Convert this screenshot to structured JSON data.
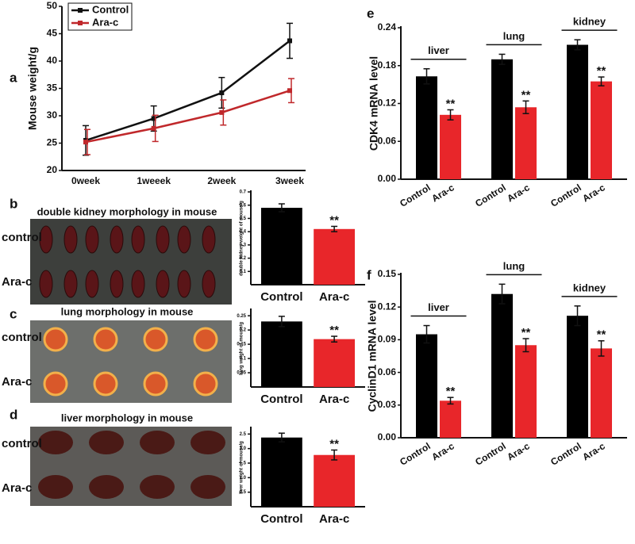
{
  "chart_data": [
    {
      "type": "line",
      "panel": "a",
      "ylabel": "Mouse weight/g",
      "categories": [
        "0week",
        "1weeek",
        "2week",
        "3week"
      ],
      "series": [
        {
          "name": "Control",
          "color": "#111111",
          "values": [
            25.5,
            29.5,
            34.2,
            43.7
          ],
          "errors": [
            2.7,
            2.3,
            2.8,
            3.2
          ]
        },
        {
          "name": "Ara-c",
          "color": "#c0282b",
          "values": [
            25.2,
            27.7,
            30.6,
            34.6
          ],
          "errors": [
            2.3,
            2.4,
            2.3,
            2.2
          ]
        }
      ],
      "ylim": [
        20,
        50
      ],
      "yticks": [
        20,
        25,
        30,
        35,
        40,
        45,
        50
      ],
      "legend": "upper left"
    },
    {
      "type": "bar",
      "panel": "b",
      "title": "double kidney morphology in mouse",
      "image_labels": [
        "control",
        "Ara-c"
      ],
      "ylabel": "double kidney weight of mouse/g",
      "series": [
        {
          "name": "Control",
          "color": "#000000",
          "values": [
            0.58
          ],
          "errors": [
            0.03
          ]
        },
        {
          "name": "Ara-c",
          "color": "#e8262a",
          "values": [
            0.42
          ],
          "errors": [
            0.02
          ],
          "annotations": [
            "**"
          ]
        }
      ],
      "ylim": [
        0,
        0.7
      ],
      "yticks": [
        0.1,
        0.2,
        0.3,
        0.4,
        0.5,
        0.6,
        0.7
      ]
    },
    {
      "type": "bar",
      "panel": "c",
      "title": "lung morphology in mouse",
      "image_labels": [
        "control",
        "Ara-c"
      ],
      "ylabel": "lung weight of mouse/g",
      "series": [
        {
          "name": "Control",
          "color": "#000000",
          "values": [
            0.23
          ],
          "errors": [
            0.018
          ]
        },
        {
          "name": "Ara-c",
          "color": "#e8262a",
          "values": [
            0.168
          ],
          "errors": [
            0.01
          ],
          "annotations": [
            "**"
          ]
        }
      ],
      "ylim": [
        0,
        0.27
      ],
      "yticks": [
        0.05,
        0.1,
        0.15,
        0.2,
        0.25
      ]
    },
    {
      "type": "bar",
      "panel": "d",
      "title": "liver morphology in mouse",
      "image_labels": [
        "control",
        "Ara-c"
      ],
      "ylabel": "liver weight of mouse/g",
      "series": [
        {
          "name": "Control",
          "color": "#000000",
          "values": [
            2.38
          ],
          "errors": [
            0.15
          ]
        },
        {
          "name": "Ara-c",
          "color": "#e8262a",
          "values": [
            1.78
          ],
          "errors": [
            0.17
          ],
          "annotations": [
            "**"
          ]
        }
      ],
      "ylim": [
        0,
        2.7
      ],
      "yticks": [
        0.5,
        {
          "value": 1,
          "label": "1.0"
        },
        1.5,
        {
          "value": 2,
          "label": "2.0"
        },
        2.5
      ]
    },
    {
      "type": "bar",
      "panel": "e",
      "ylabel": "CDK4 mRNA level",
      "categories": [
        "liver",
        "lung",
        "kidney"
      ],
      "series": [
        {
          "name": "Control",
          "color": "#000000",
          "values": [
            0.163,
            0.19,
            0.213
          ],
          "errors": [
            0.012,
            0.008,
            0.008
          ]
        },
        {
          "name": "Ara-c",
          "color": "#e8262a",
          "values": [
            0.102,
            0.114,
            0.155
          ],
          "errors": [
            0.008,
            0.01,
            0.007
          ],
          "annotations": [
            "**",
            "**",
            "**"
          ]
        }
      ],
      "ylim": [
        0,
        0.24
      ],
      "yticks": [
        {
          "value": 0,
          "label": "0.00"
        },
        {
          "value": 0.06,
          "label": "0.06"
        },
        {
          "value": 0.12,
          "label": "0.12"
        },
        {
          "value": 0.18,
          "label": "0.18"
        },
        {
          "value": 0.24,
          "label": "0.24"
        }
      ]
    },
    {
      "type": "bar",
      "panel": "f",
      "ylabel": "CyclinD1 mRNA level",
      "categories": [
        "liver",
        "lung",
        "kidney"
      ],
      "series": [
        {
          "name": "Control",
          "color": "#000000",
          "values": [
            0.095,
            0.132,
            0.112
          ],
          "errors": [
            0.008,
            0.009,
            0.009
          ]
        },
        {
          "name": "Ara-c",
          "color": "#e8262a",
          "values": [
            0.034,
            0.085,
            0.082
          ],
          "errors": [
            0.003,
            0.006,
            0.007
          ],
          "annotations": [
            "**",
            "**",
            "**"
          ]
        }
      ],
      "ylim": [
        0,
        0.15
      ],
      "yticks": [
        {
          "value": 0,
          "label": "0.00"
        },
        {
          "value": 0.03,
          "label": "0.03"
        },
        {
          "value": 0.06,
          "label": "0.06"
        },
        {
          "value": 0.09,
          "label": "0.09"
        },
        {
          "value": 0.12,
          "label": "0.12"
        },
        {
          "value": 0.15,
          "label": "0.15"
        }
      ]
    }
  ]
}
